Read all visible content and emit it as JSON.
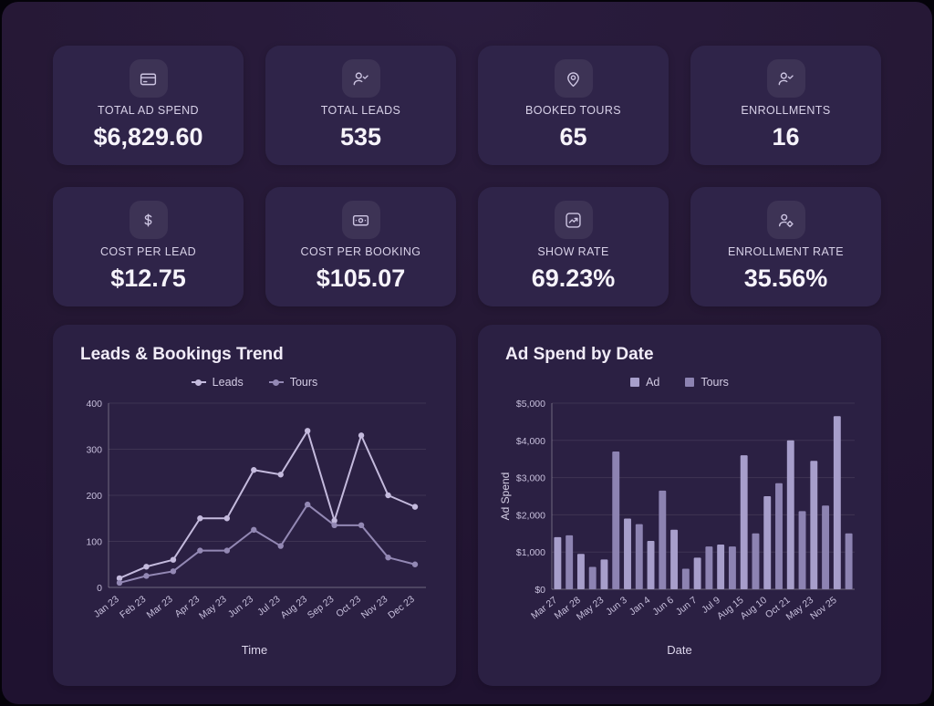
{
  "theme": {
    "page_bg": "#241733",
    "kpi_card_bg": "#2f2449",
    "chart_card_bg": "#2b2043",
    "text_primary": "#f6f3fa",
    "text_secondary": "#d8d1e8",
    "grid_line": "rgba(255,255,255,0.09)",
    "axis_line": "rgba(255,255,255,0.32)"
  },
  "kpi_cards": [
    {
      "label": "TOTAL AD SPEND",
      "value": "$6,829.60",
      "icon": "credit-card-icon"
    },
    {
      "label": "TOTAL LEADS",
      "value": "535",
      "icon": "user-check-icon"
    },
    {
      "label": "BOOKED TOURS",
      "value": "65",
      "icon": "location-pin-icon"
    },
    {
      "label": "ENROLLMENTS",
      "value": "16",
      "icon": "user-check-icon"
    },
    {
      "label": "COST PER LEAD",
      "value": "$12.75",
      "icon": "dollar-icon"
    },
    {
      "label": "COST PER BOOKING",
      "value": "$105.07",
      "icon": "banknote-icon"
    },
    {
      "label": "SHOW RATE",
      "value": "69.23%",
      "icon": "trend-up-icon"
    },
    {
      "label": "ENROLLMENT RATE",
      "value": "35.56%",
      "icon": "user-gear-icon"
    }
  ],
  "chart_data": [
    {
      "type": "line",
      "title": "Leads & Bookings Trend",
      "xlabel": "Time",
      "ylabel": "",
      "ylim": [
        0,
        400
      ],
      "yticks": [
        "0",
        "100",
        "200",
        "300",
        "400"
      ],
      "grid": true,
      "legend_position": "top",
      "categories": [
        "Jan 23",
        "Feb 23",
        "Mar 23",
        "Apr 23",
        "May 23",
        "Jun 23",
        "Jul 23",
        "Aug 23",
        "Sep 23",
        "Oct 23",
        "Nov 23",
        "Dec 23"
      ],
      "series": [
        {
          "name": "Leads",
          "color": "#c4badd",
          "values": [
            20,
            45,
            60,
            150,
            150,
            255,
            245,
            340,
            145,
            330,
            200,
            175
          ]
        },
        {
          "name": "Tours",
          "color": "#9388b4",
          "values": [
            10,
            25,
            35,
            80,
            80,
            125,
            90,
            180,
            135,
            135,
            65,
            50
          ]
        }
      ]
    },
    {
      "type": "bar",
      "title": "Ad Spend by Date",
      "xlabel": "Date",
      "ylabel": "Ad Spend",
      "ylim": [
        0,
        5000
      ],
      "yticks": [
        "$0",
        "$1,000",
        "$2,000",
        "$3,000",
        "$4,000",
        "$5,000"
      ],
      "grid": true,
      "legend_position": "top",
      "legend": [
        {
          "name": "Ad",
          "color": "#a79ecb"
        },
        {
          "name": "Tours",
          "color": "#8d83b2"
        }
      ],
      "categories": [
        "Mar 27",
        "",
        "Mar 28",
        "",
        "May 23",
        "",
        "Jun 3",
        "",
        "Jan 4",
        "",
        "Jun 6",
        "",
        "Jun 7",
        "",
        "Jul 9",
        "",
        "Aug 15",
        "",
        "Aug 10",
        "",
        "Oct 21",
        "",
        "May 23",
        "",
        "Nov 25",
        ""
      ],
      "values": [
        1400,
        1450,
        950,
        600,
        800,
        3700,
        1900,
        1750,
        1300,
        2650,
        1600,
        550,
        850,
        1150,
        1200,
        1150,
        3600,
        1500,
        2500,
        2850,
        4000,
        2100,
        3450,
        2250,
        4650,
        1500
      ]
    }
  ]
}
